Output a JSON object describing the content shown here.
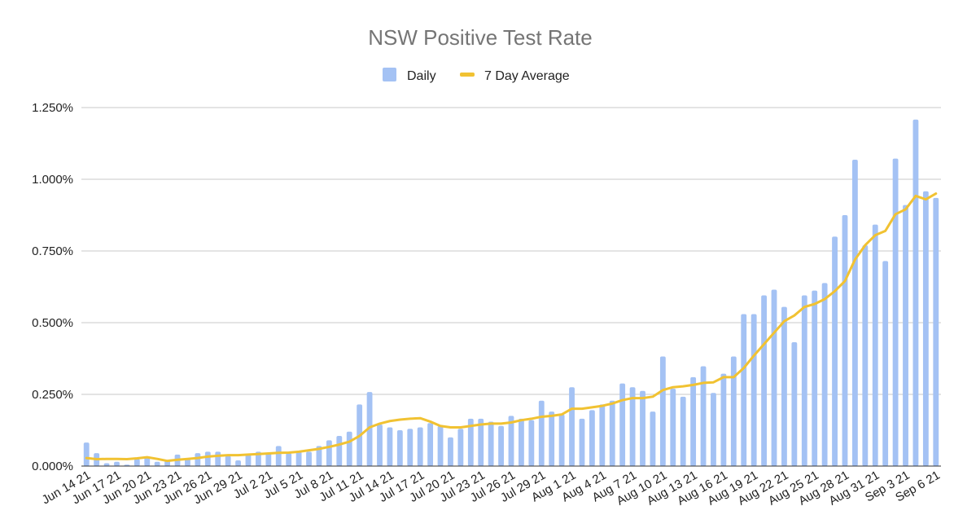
{
  "chart_data": {
    "type": "bar",
    "title": "NSW Positive Test Rate",
    "xlabel": "",
    "ylabel": "",
    "ylim": [
      0,
      1.25
    ],
    "y_ticks": [
      "0.000%",
      "0.250%",
      "0.500%",
      "0.750%",
      "1.000%",
      "1.250%"
    ],
    "y_tick_values": [
      0,
      0.25,
      0.5,
      0.75,
      1.0,
      1.25
    ],
    "grid": true,
    "legend_position": "top",
    "x_tick_labels": [
      "Jun 14 21",
      "Jun 17 21",
      "Jun 20 21",
      "Jun 23 21",
      "Jun 26 21",
      "Jun 29 21",
      "Jul 2 21",
      "Jul 5 21",
      "Jul 8 21",
      "Jul 11 21",
      "Jul 14 21",
      "Jul 17 21",
      "Jul 20 21",
      "Jul 23 21",
      "Jul 26 21",
      "Jul 29 21",
      "Aug 1 21",
      "Aug 4 21",
      "Aug 7 21",
      "Aug 10 21",
      "Aug 13 21",
      "Aug 16 21",
      "Aug 19 21",
      "Aug 22 21",
      "Aug 25 21",
      "Aug 28 21",
      "Aug 31 21",
      "Sep 3 21",
      "Sep 6 21"
    ],
    "x_tick_step": 3,
    "series": [
      {
        "name": "Daily",
        "type": "bar",
        "color": "#a4c2f4",
        "values": [
          0.082,
          0.045,
          0.01,
          0.015,
          0.005,
          0.025,
          0.03,
          0.015,
          0.02,
          0.04,
          0.025,
          0.045,
          0.05,
          0.05,
          0.035,
          0.02,
          0.04,
          0.05,
          0.045,
          0.07,
          0.045,
          0.05,
          0.05,
          0.07,
          0.09,
          0.105,
          0.12,
          0.215,
          0.258,
          0.145,
          0.135,
          0.125,
          0.13,
          0.135,
          0.15,
          0.14,
          0.1,
          0.13,
          0.165,
          0.165,
          0.155,
          0.14,
          0.175,
          0.165,
          0.16,
          0.228,
          0.19,
          0.18,
          0.275,
          0.165,
          0.195,
          0.215,
          0.228,
          0.288,
          0.275,
          0.262,
          0.19,
          0.382,
          0.27,
          0.242,
          0.31,
          0.348,
          0.255,
          0.322,
          0.382,
          0.53,
          0.53,
          0.595,
          0.615,
          0.555,
          0.432,
          0.595,
          0.612,
          0.638,
          0.8,
          0.875,
          1.068,
          0.77,
          0.842,
          0.715,
          1.072,
          0.91,
          1.208,
          0.958,
          0.935
        ]
      },
      {
        "name": "7 Day Average",
        "type": "line",
        "color": "#f1c232",
        "values": [
          0.028,
          0.024,
          0.025,
          0.025,
          0.024,
          0.027,
          0.031,
          0.025,
          0.018,
          0.022,
          0.025,
          0.028,
          0.033,
          0.036,
          0.038,
          0.038,
          0.04,
          0.042,
          0.044,
          0.046,
          0.047,
          0.05,
          0.055,
          0.06,
          0.067,
          0.075,
          0.085,
          0.105,
          0.135,
          0.148,
          0.157,
          0.162,
          0.165,
          0.167,
          0.155,
          0.14,
          0.135,
          0.135,
          0.14,
          0.145,
          0.148,
          0.148,
          0.152,
          0.16,
          0.165,
          0.172,
          0.175,
          0.18,
          0.2,
          0.2,
          0.205,
          0.21,
          0.218,
          0.23,
          0.237,
          0.237,
          0.242,
          0.265,
          0.275,
          0.278,
          0.283,
          0.29,
          0.292,
          0.31,
          0.31,
          0.342,
          0.385,
          0.425,
          0.465,
          0.505,
          0.525,
          0.555,
          0.565,
          0.582,
          0.61,
          0.645,
          0.72,
          0.77,
          0.805,
          0.82,
          0.878,
          0.895,
          0.942,
          0.93,
          0.95
        ]
      }
    ]
  }
}
